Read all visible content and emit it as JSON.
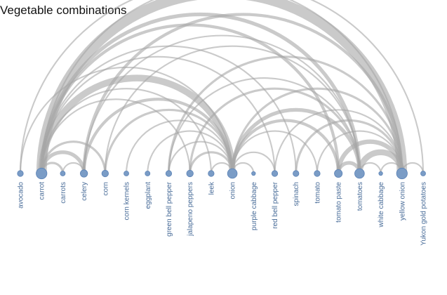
{
  "chart_data": {
    "type": "arc-diagram",
    "title": "Vegetable combinations",
    "nodes": [
      {
        "name": "avocado",
        "size": 2
      },
      {
        "name": "carrot",
        "size": 12
      },
      {
        "name": "carrots",
        "size": 1
      },
      {
        "name": "celery",
        "size": 4
      },
      {
        "name": "corn",
        "size": 3
      },
      {
        "name": "corn kernels",
        "size": 1
      },
      {
        "name": "eggplant",
        "size": 1
      },
      {
        "name": "green bell pepper",
        "size": 2
      },
      {
        "name": "jalapeno peppers",
        "size": 3
      },
      {
        "name": "leek",
        "size": 2
      },
      {
        "name": "onion",
        "size": 9
      },
      {
        "name": "purple cabbage",
        "size": 0.3
      },
      {
        "name": "red bell pepper",
        "size": 2
      },
      {
        "name": "spinach",
        "size": 2
      },
      {
        "name": "tomato",
        "size": 2
      },
      {
        "name": "tomato paste",
        "size": 5
      },
      {
        "name": "tomatoes",
        "size": 9
      },
      {
        "name": "white cabbage",
        "size": 0.3
      },
      {
        "name": "yellow onion",
        "size": 12
      },
      {
        "name": "Yukon gold potatoes",
        "size": 1
      }
    ],
    "links": [
      {
        "source": "carrot",
        "target": "yellow onion",
        "weight": 14
      },
      {
        "source": "carrot",
        "target": "onion",
        "weight": 9
      },
      {
        "source": "carrot",
        "target": "tomatoes",
        "weight": 5
      },
      {
        "source": "carrot",
        "target": "celery",
        "weight": 5
      },
      {
        "source": "carrot",
        "target": "carrots",
        "weight": 3
      },
      {
        "source": "carrot",
        "target": "tomato paste",
        "weight": 4
      },
      {
        "source": "carrot",
        "target": "corn",
        "weight": 3
      },
      {
        "source": "carrot",
        "target": "spinach",
        "weight": 2
      },
      {
        "source": "carrot",
        "target": "leek",
        "weight": 2
      },
      {
        "source": "carrot",
        "target": "red bell pepper",
        "weight": 2
      },
      {
        "source": "carrot",
        "target": "jalapeno peppers",
        "weight": 2
      },
      {
        "source": "carrot",
        "target": "Yukon gold potatoes",
        "weight": 2
      },
      {
        "source": "avocado",
        "target": "yellow onion",
        "weight": 2
      },
      {
        "source": "avocado",
        "target": "onion",
        "weight": 2
      },
      {
        "source": "carrots",
        "target": "celery",
        "weight": 2
      },
      {
        "source": "celery",
        "target": "onion",
        "weight": 4
      },
      {
        "source": "celery",
        "target": "yellow onion",
        "weight": 4
      },
      {
        "source": "celery",
        "target": "tomatoes",
        "weight": 2
      },
      {
        "source": "corn",
        "target": "onion",
        "weight": 3
      },
      {
        "source": "corn",
        "target": "tomatoes",
        "weight": 2
      },
      {
        "source": "corn kernels",
        "target": "onion",
        "weight": 2
      },
      {
        "source": "eggplant",
        "target": "onion",
        "weight": 2
      },
      {
        "source": "green bell pepper",
        "target": "yellow onion",
        "weight": 3
      },
      {
        "source": "green bell pepper",
        "target": "onion",
        "weight": 2
      },
      {
        "source": "green bell pepper",
        "target": "tomatoes",
        "weight": 2
      },
      {
        "source": "jalapeno peppers",
        "target": "onion",
        "weight": 3
      },
      {
        "source": "jalapeno peppers",
        "target": "tomatoes",
        "weight": 3
      },
      {
        "source": "leek",
        "target": "onion",
        "weight": 2
      },
      {
        "source": "onion",
        "target": "tomatoes",
        "weight": 5
      },
      {
        "source": "onion",
        "target": "tomato paste",
        "weight": 4
      },
      {
        "source": "onion",
        "target": "yellow onion",
        "weight": 3
      },
      {
        "source": "onion",
        "target": "tomato",
        "weight": 2
      },
      {
        "source": "onion",
        "target": "red bell pepper",
        "weight": 2
      },
      {
        "source": "onion",
        "target": "purple cabbage",
        "weight": 2
      },
      {
        "source": "red bell pepper",
        "target": "yellow onion",
        "weight": 2
      },
      {
        "source": "spinach",
        "target": "yellow onion",
        "weight": 3
      },
      {
        "source": "tomato",
        "target": "yellow onion",
        "weight": 2
      },
      {
        "source": "tomato paste",
        "target": "tomatoes",
        "weight": 5
      },
      {
        "source": "tomato paste",
        "target": "yellow onion",
        "weight": 6
      },
      {
        "source": "tomatoes",
        "target": "yellow onion",
        "weight": 8
      },
      {
        "source": "tomatoes",
        "target": "white cabbage",
        "weight": 2
      },
      {
        "source": "white cabbage",
        "target": "yellow onion",
        "weight": 2
      },
      {
        "source": "yellow onion",
        "target": "Yukon gold potatoes",
        "weight": 2
      }
    ],
    "colors": {
      "node_fill": "#7a9cc6",
      "node_stroke": "#5b82b6",
      "link": "#a6a6a6",
      "label": "#4a6d99"
    }
  }
}
